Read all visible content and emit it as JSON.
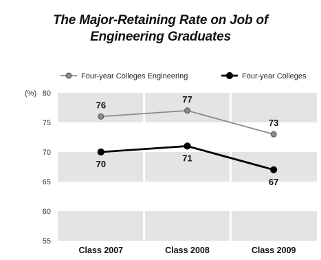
{
  "chart_data": {
    "type": "line",
    "title_line1": "The Major-Retaining Rate on Job of",
    "title_line2": "Engineering Graduates",
    "unit": "(%)",
    "categories": [
      "Class 2007",
      "Class 2008",
      "Class 2009"
    ],
    "ylim": [
      55,
      80
    ],
    "yticks": [
      "80",
      "75",
      "70",
      "65",
      "60",
      "55"
    ],
    "grid": true,
    "legend_position": "top",
    "series": [
      {
        "name": "Four-year Colleges Engineering",
        "values": [
          76,
          77,
          73
        ],
        "labels": [
          "76",
          "77",
          "73"
        ],
        "color": "#8a8a8a"
      },
      {
        "name": "Four-year Colleges",
        "values": [
          70,
          71,
          67
        ],
        "labels": [
          "70",
          "71",
          "67"
        ],
        "color": "#000000"
      }
    ]
  }
}
